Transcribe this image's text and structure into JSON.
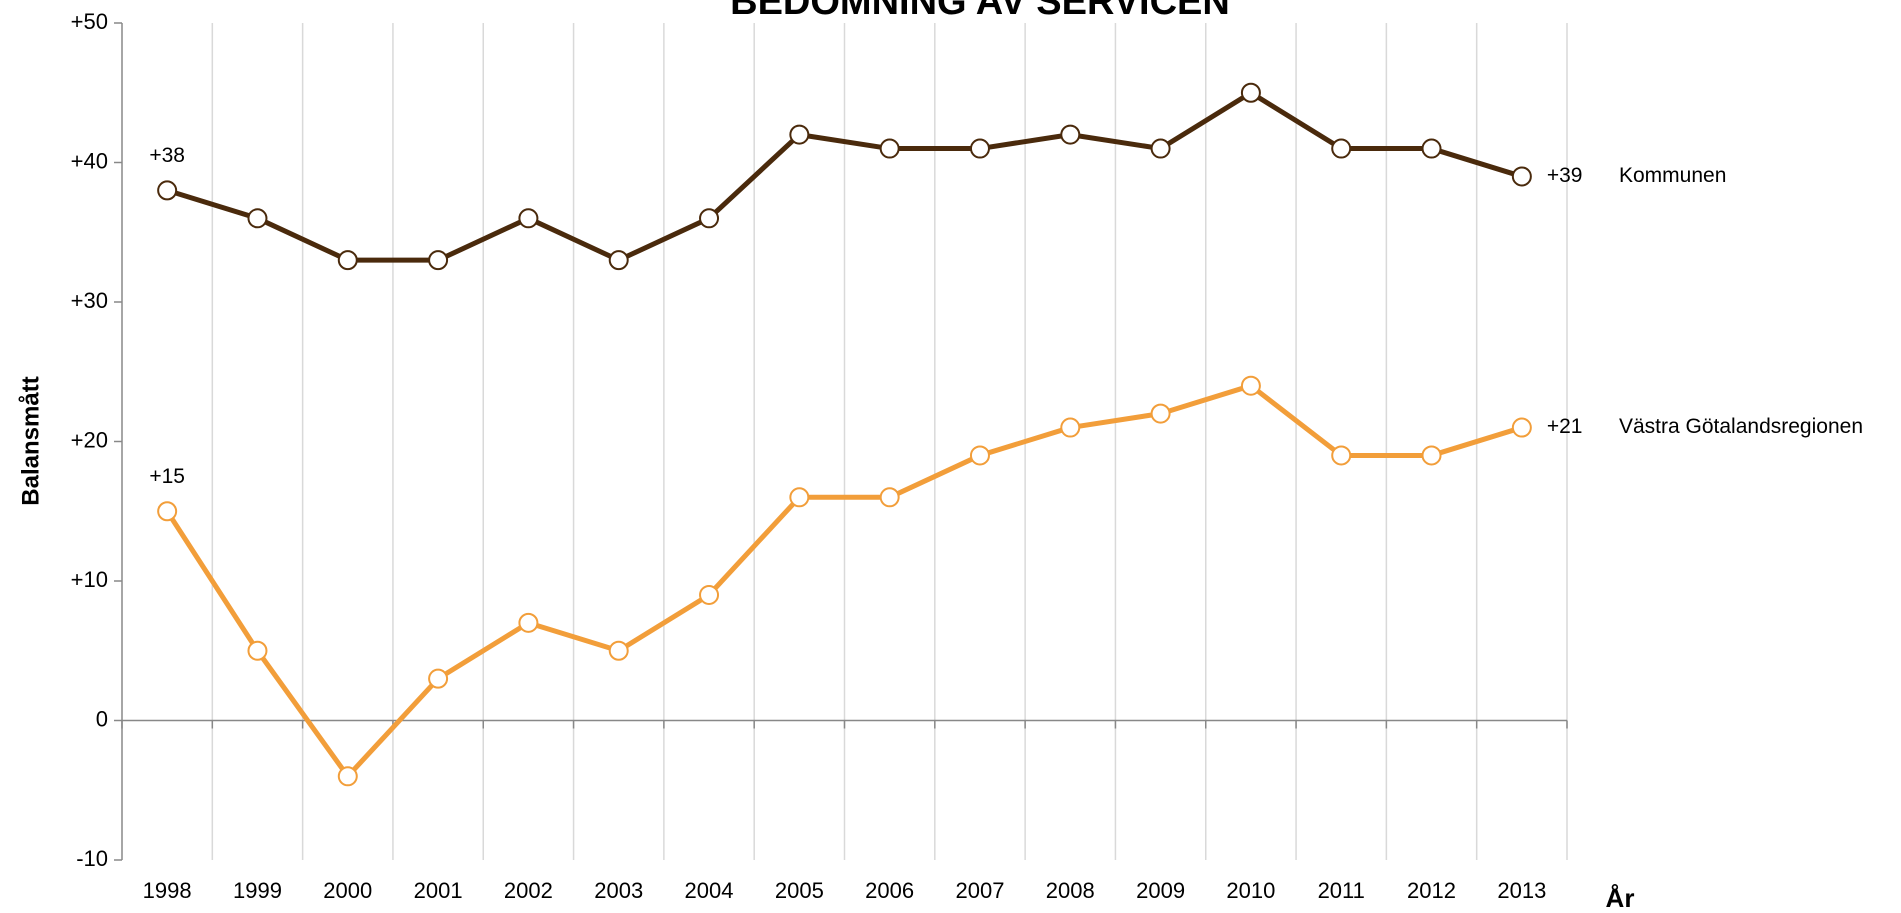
{
  "chart_data": {
    "type": "line",
    "title": "BEDÖMNING AV SERVICEN",
    "xlabel": "År",
    "ylabel": "Balansmått",
    "categories": [
      "1998",
      "1999",
      "2000",
      "2001",
      "2002",
      "2003",
      "2004",
      "2005",
      "2006",
      "2007",
      "2008",
      "2009",
      "2010",
      "2011",
      "2012",
      "2013"
    ],
    "series": [
      {
        "name": "Kommunen",
        "color": "#4a2a0c",
        "values": [
          38,
          36,
          33,
          33,
          36,
          33,
          36,
          42,
          41,
          41,
          42,
          41,
          45,
          41,
          41,
          39
        ],
        "value_labels": [
          "+38",
          null,
          null,
          null,
          null,
          null,
          null,
          null,
          null,
          null,
          null,
          null,
          null,
          null,
          null,
          "+39"
        ]
      },
      {
        "name": "Västra Götalandsregionen",
        "color": "#f29e3a",
        "values": [
          15,
          5,
          -4,
          3,
          7,
          5,
          9,
          16,
          16,
          19,
          21,
          22,
          24,
          19,
          19,
          21
        ],
        "value_labels": [
          "+15",
          null,
          null,
          null,
          null,
          null,
          null,
          null,
          null,
          null,
          null,
          null,
          null,
          null,
          null,
          "+21"
        ]
      }
    ],
    "ylim": [
      -10,
      50
    ],
    "yticks": [
      -10,
      0,
      {
        "value": 10,
        "label": "+10"
      },
      {
        "value": 20,
        "label": "+20"
      },
      {
        "value": 30,
        "label": "+30"
      },
      {
        "value": 40,
        "label": "+40"
      },
      {
        "value": 50,
        "label": "+50"
      }
    ],
    "grid": "x"
  }
}
